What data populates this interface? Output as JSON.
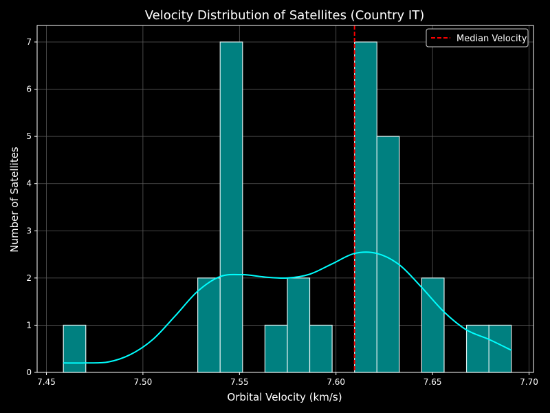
{
  "chart_data": {
    "type": "bar",
    "title": "Velocity Distribution of Satellites (Country IT)",
    "xlabel": "Orbital Velocity (km/s)",
    "ylabel": "Number of Satellites",
    "xlim": [
      7.4452,
      7.7023
    ],
    "ylim": [
      0,
      7.35
    ],
    "xticks": [
      7.45,
      7.5,
      7.55,
      7.6,
      7.65,
      7.7
    ],
    "xtick_labels": [
      "7.45",
      "7.50",
      "7.55",
      "7.60",
      "7.65",
      "7.70"
    ],
    "yticks": [
      0,
      1,
      2,
      3,
      4,
      5,
      6,
      7
    ],
    "ytick_labels": [
      "0",
      "1",
      "2",
      "3",
      "4",
      "5",
      "6",
      "7"
    ],
    "grid": true,
    "legend_position": "top-right",
    "bin_edges": [
      7.4588,
      7.4704,
      7.482,
      7.4936,
      7.5052,
      7.5168,
      7.5284,
      7.54,
      7.5516,
      7.5632,
      7.5748,
      7.5864,
      7.598,
      7.6096,
      7.6212,
      7.6328,
      7.6444,
      7.656,
      7.6676,
      7.6792,
      7.6908
    ],
    "counts": [
      1,
      0,
      0,
      0,
      0,
      0,
      2,
      7,
      0,
      1,
      2,
      1,
      0,
      7,
      5,
      0,
      2,
      0,
      1,
      1
    ],
    "kde": {
      "x": [
        7.4588,
        7.4704,
        7.482,
        7.4936,
        7.5052,
        7.5168,
        7.5284,
        7.54,
        7.5516,
        7.5632,
        7.5748,
        7.5864,
        7.598,
        7.6096,
        7.6212,
        7.6328,
        7.6444,
        7.656,
        7.6676,
        7.6792,
        7.6908
      ],
      "y": [
        0.2,
        0.2,
        0.22,
        0.38,
        0.7,
        1.2,
        1.72,
        2.03,
        2.07,
        2.02,
        2.0,
        2.08,
        2.3,
        2.52,
        2.52,
        2.28,
        1.8,
        1.28,
        0.9,
        0.7,
        0.47
      ]
    },
    "median": 7.6096,
    "series": [
      {
        "name": "Median Velocity",
        "kind": "median-line"
      }
    ],
    "colors": {
      "bar_fill": "#008080",
      "bar_edge": "#e0f0f0",
      "kde": "#00ffff",
      "median": "#ff0000",
      "grid": "#5a5a5a",
      "axis": "#ffffff",
      "background": "#000000"
    }
  }
}
